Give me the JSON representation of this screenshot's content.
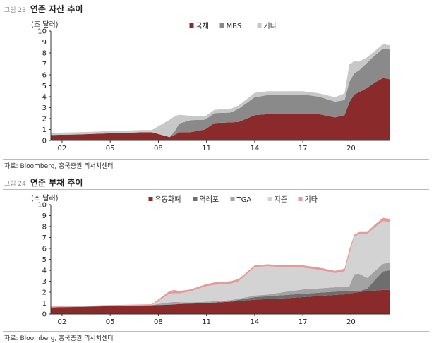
{
  "figure1": {
    "number": "그림 23",
    "title": "연준 자산 추이",
    "source": "자료: Bloomberg, 흥국증권 리서치센터"
  },
  "figure2": {
    "number": "그림 24",
    "title": "연준 부채 추이",
    "source": "자료: Bloomberg, 흥국증권 리서치센터"
  },
  "chart_data": [
    {
      "type": "area",
      "stacked": true,
      "ylabel": "(조 달러)",
      "ylim": [
        0,
        10
      ],
      "yticks": [
        0,
        1,
        2,
        3,
        4,
        5,
        6,
        7,
        8,
        9,
        10
      ],
      "xlim": [
        2001.3,
        2022.4
      ],
      "xticks": [
        {
          "value": 2002,
          "label": "02"
        },
        {
          "value": 2005,
          "label": "05"
        },
        {
          "value": 2008,
          "label": "08"
        },
        {
          "value": 2011,
          "label": "11"
        },
        {
          "value": 2014,
          "label": "14"
        },
        {
          "value": 2017,
          "label": "17"
        },
        {
          "value": 2020,
          "label": "20"
        }
      ],
      "grid": false,
      "legend": "top-center",
      "x": [
        2001.3,
        2003,
        2005,
        2007,
        2007.6,
        2008.7,
        2009.0,
        2009.3,
        2010.0,
        2010.9,
        2011.5,
        2012.5,
        2013.0,
        2014.0,
        2014.8,
        2016.0,
        2017.0,
        2018.0,
        2019.0,
        2019.6,
        2019.9,
        2020.2,
        2020.5,
        2021.0,
        2021.5,
        2022.0,
        2022.4
      ],
      "series": [
        {
          "name": "국채",
          "color": "#8b2a2a",
          "values": [
            0.5,
            0.55,
            0.65,
            0.75,
            0.75,
            0.3,
            0.5,
            0.75,
            0.75,
            1.0,
            1.6,
            1.65,
            1.7,
            2.3,
            2.4,
            2.45,
            2.45,
            2.4,
            2.1,
            2.3,
            3.5,
            4.2,
            4.4,
            4.8,
            5.3,
            5.7,
            5.6
          ]
        },
        {
          "name": "MBS",
          "color": "#8a8a8a",
          "values": [
            0,
            0,
            0,
            0,
            0,
            0,
            0.3,
            0.8,
            1.1,
            0.9,
            0.9,
            0.9,
            1.2,
            1.65,
            1.75,
            1.75,
            1.75,
            1.6,
            1.45,
            1.4,
            1.85,
            1.95,
            2.0,
            2.3,
            2.5,
            2.7,
            2.7
          ]
        },
        {
          "name": "기타",
          "color": "#c8c8c8",
          "values": [
            0.2,
            0.2,
            0.2,
            0.2,
            0.2,
            1.6,
            1.4,
            0.8,
            0.4,
            0.3,
            0.3,
            0.35,
            0.3,
            0.4,
            0.35,
            0.3,
            0.3,
            0.3,
            0.4,
            0.6,
            1.6,
            1.1,
            0.8,
            0.5,
            0.4,
            0.4,
            0.4
          ]
        }
      ]
    },
    {
      "type": "area",
      "stacked": true,
      "ylabel": "(조 달러)",
      "ylim": [
        0,
        10
      ],
      "yticks": [
        0,
        1,
        2,
        3,
        4,
        5,
        6,
        7,
        8,
        9,
        10
      ],
      "xlim": [
        2001.3,
        2022.4
      ],
      "xticks": [
        {
          "value": 2002,
          "label": "02"
        },
        {
          "value": 2005,
          "label": "05"
        },
        {
          "value": 2008,
          "label": "08"
        },
        {
          "value": 2011,
          "label": "11"
        },
        {
          "value": 2014,
          "label": "14"
        },
        {
          "value": 2017,
          "label": "17"
        },
        {
          "value": 2020,
          "label": "20"
        }
      ],
      "grid": false,
      "legend": "top-center",
      "x": [
        2001.3,
        2003,
        2005,
        2007,
        2007.6,
        2008.7,
        2009.0,
        2009.3,
        2010.0,
        2010.9,
        2011.5,
        2012.5,
        2013.0,
        2014.0,
        2014.8,
        2016.0,
        2017.0,
        2018.0,
        2019.0,
        2019.6,
        2019.9,
        2020.2,
        2020.5,
        2021.0,
        2021.5,
        2022.0,
        2022.4
      ],
      "series": [
        {
          "name": "유동화폐",
          "color": "#8b2a2a",
          "values": [
            0.6,
            0.65,
            0.72,
            0.78,
            0.8,
            0.85,
            0.88,
            0.92,
            0.95,
            1.0,
            1.05,
            1.12,
            1.2,
            1.3,
            1.38,
            1.45,
            1.55,
            1.65,
            1.75,
            1.8,
            1.85,
            1.95,
            2.0,
            2.1,
            2.15,
            2.2,
            2.2
          ]
        },
        {
          "name": "역레포",
          "color": "#6e6e6e",
          "values": [
            0.02,
            0.02,
            0.02,
            0.02,
            0.02,
            0.02,
            0.02,
            0.02,
            0.02,
            0.02,
            0.02,
            0.05,
            0.1,
            0.25,
            0.25,
            0.3,
            0.3,
            0.3,
            0.3,
            0.3,
            0.3,
            0.2,
            0.1,
            0.2,
            1.0,
            1.7,
            1.8
          ]
        },
        {
          "name": "TGA",
          "color": "#a3a3a3",
          "values": [
            0.01,
            0.01,
            0.01,
            0.01,
            0.01,
            0.2,
            0.2,
            0.15,
            0.1,
            0.1,
            0.1,
            0.1,
            0.1,
            0.15,
            0.15,
            0.3,
            0.4,
            0.4,
            0.4,
            0.35,
            0.4,
            1.5,
            1.6,
            1.0,
            0.8,
            0.7,
            0.7
          ]
        },
        {
          "name": "지준",
          "color": "#d3d3d3",
          "values": [
            0.01,
            0.01,
            0.01,
            0.01,
            0.01,
            0.8,
            0.8,
            0.8,
            1.0,
            1.4,
            1.5,
            1.5,
            1.6,
            2.6,
            2.6,
            2.2,
            2.0,
            1.7,
            1.3,
            1.45,
            3.0,
            3.4,
            3.6,
            4.0,
            4.0,
            3.9,
            3.7
          ]
        },
        {
          "name": "기타",
          "color": "#e39a9a",
          "values": [
            0.06,
            0.06,
            0.06,
            0.06,
            0.06,
            0.23,
            0.3,
            0.21,
            0.18,
            0.18,
            0.23,
            0.23,
            0.2,
            0.15,
            0.17,
            0.2,
            0.2,
            0.2,
            0.2,
            0.25,
            0.35,
            0.2,
            0.2,
            0.2,
            0.25,
            0.3,
            0.3
          ]
        }
      ]
    }
  ]
}
